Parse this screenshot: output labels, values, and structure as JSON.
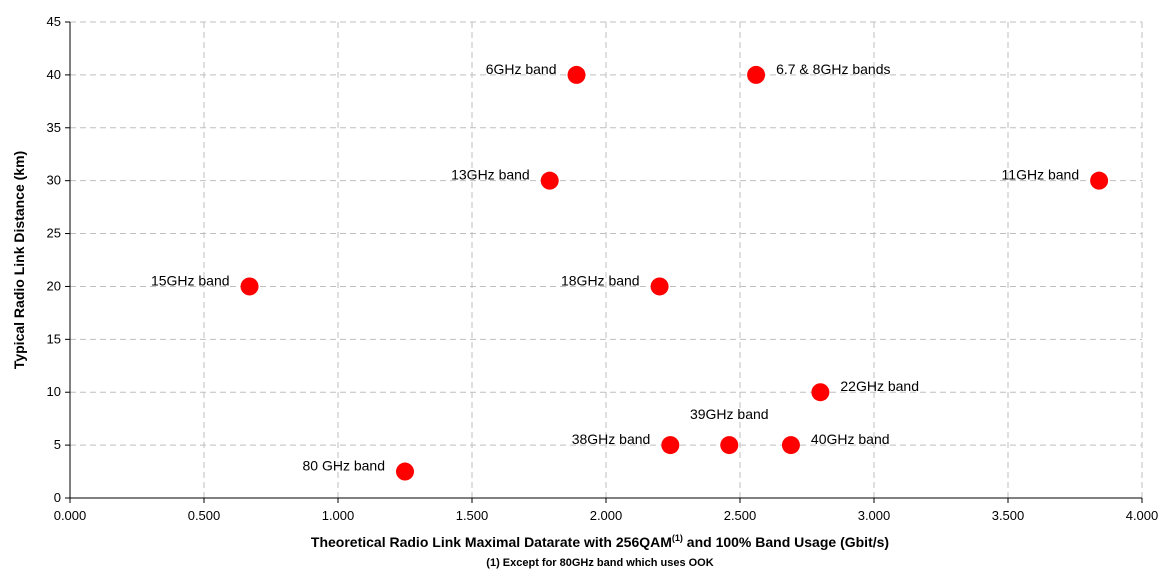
{
  "chart_data": {
    "type": "scatter",
    "xlabel": "Theoretical Radio Link Maximal Datarate with 256QAM",
    "xlabel_superscript": "(1)",
    "xlabel_tail": " and 100% Band Usage (Gbit/s)",
    "ylabel": "Typical Radio Link Distance (km)",
    "footnote": "(1) Except for 80GHz band which uses OOK",
    "xlim": [
      0,
      4
    ],
    "ylim": [
      0,
      45
    ],
    "x_ticks": [
      0,
      0.5,
      1,
      1.5,
      2,
      2.5,
      3,
      3.5,
      4
    ],
    "x_tick_labels": [
      "0.000",
      "0.500",
      "1.000",
      "1.500",
      "2.000",
      "2.500",
      "3.000",
      "3.500",
      "4.000"
    ],
    "y_ticks": [
      0,
      5,
      10,
      15,
      20,
      25,
      30,
      35,
      40,
      45
    ],
    "y_tick_labels": [
      "0",
      "5",
      "10",
      "15",
      "20",
      "25",
      "30",
      "35",
      "40",
      "45"
    ],
    "grid": true,
    "marker_color": "#ff0000",
    "points": [
      {
        "label": "6GHz band",
        "x": 1.89,
        "y": 40,
        "label_side": "left"
      },
      {
        "label": "6.7 & 8GHz bands",
        "x": 2.56,
        "y": 40,
        "label_side": "right"
      },
      {
        "label": "13GHz band",
        "x": 1.79,
        "y": 30,
        "label_side": "left"
      },
      {
        "label": "11GHz band",
        "x": 3.84,
        "y": 30,
        "label_side": "left"
      },
      {
        "label": "15GHz band",
        "x": 0.67,
        "y": 20,
        "label_side": "left"
      },
      {
        "label": "18GHz band",
        "x": 2.2,
        "y": 20,
        "label_side": "left"
      },
      {
        "label": "22GHz band",
        "x": 2.8,
        "y": 10,
        "label_side": "right"
      },
      {
        "label": "38GHz band",
        "x": 2.24,
        "y": 5,
        "label_side": "left"
      },
      {
        "label": "39GHz band",
        "x": 2.46,
        "y": 5,
        "label_side": "above"
      },
      {
        "label": "40GHz band",
        "x": 2.69,
        "y": 5,
        "label_side": "right"
      },
      {
        "label": "80 GHz band",
        "x": 1.25,
        "y": 2.5,
        "label_side": "left"
      }
    ]
  }
}
